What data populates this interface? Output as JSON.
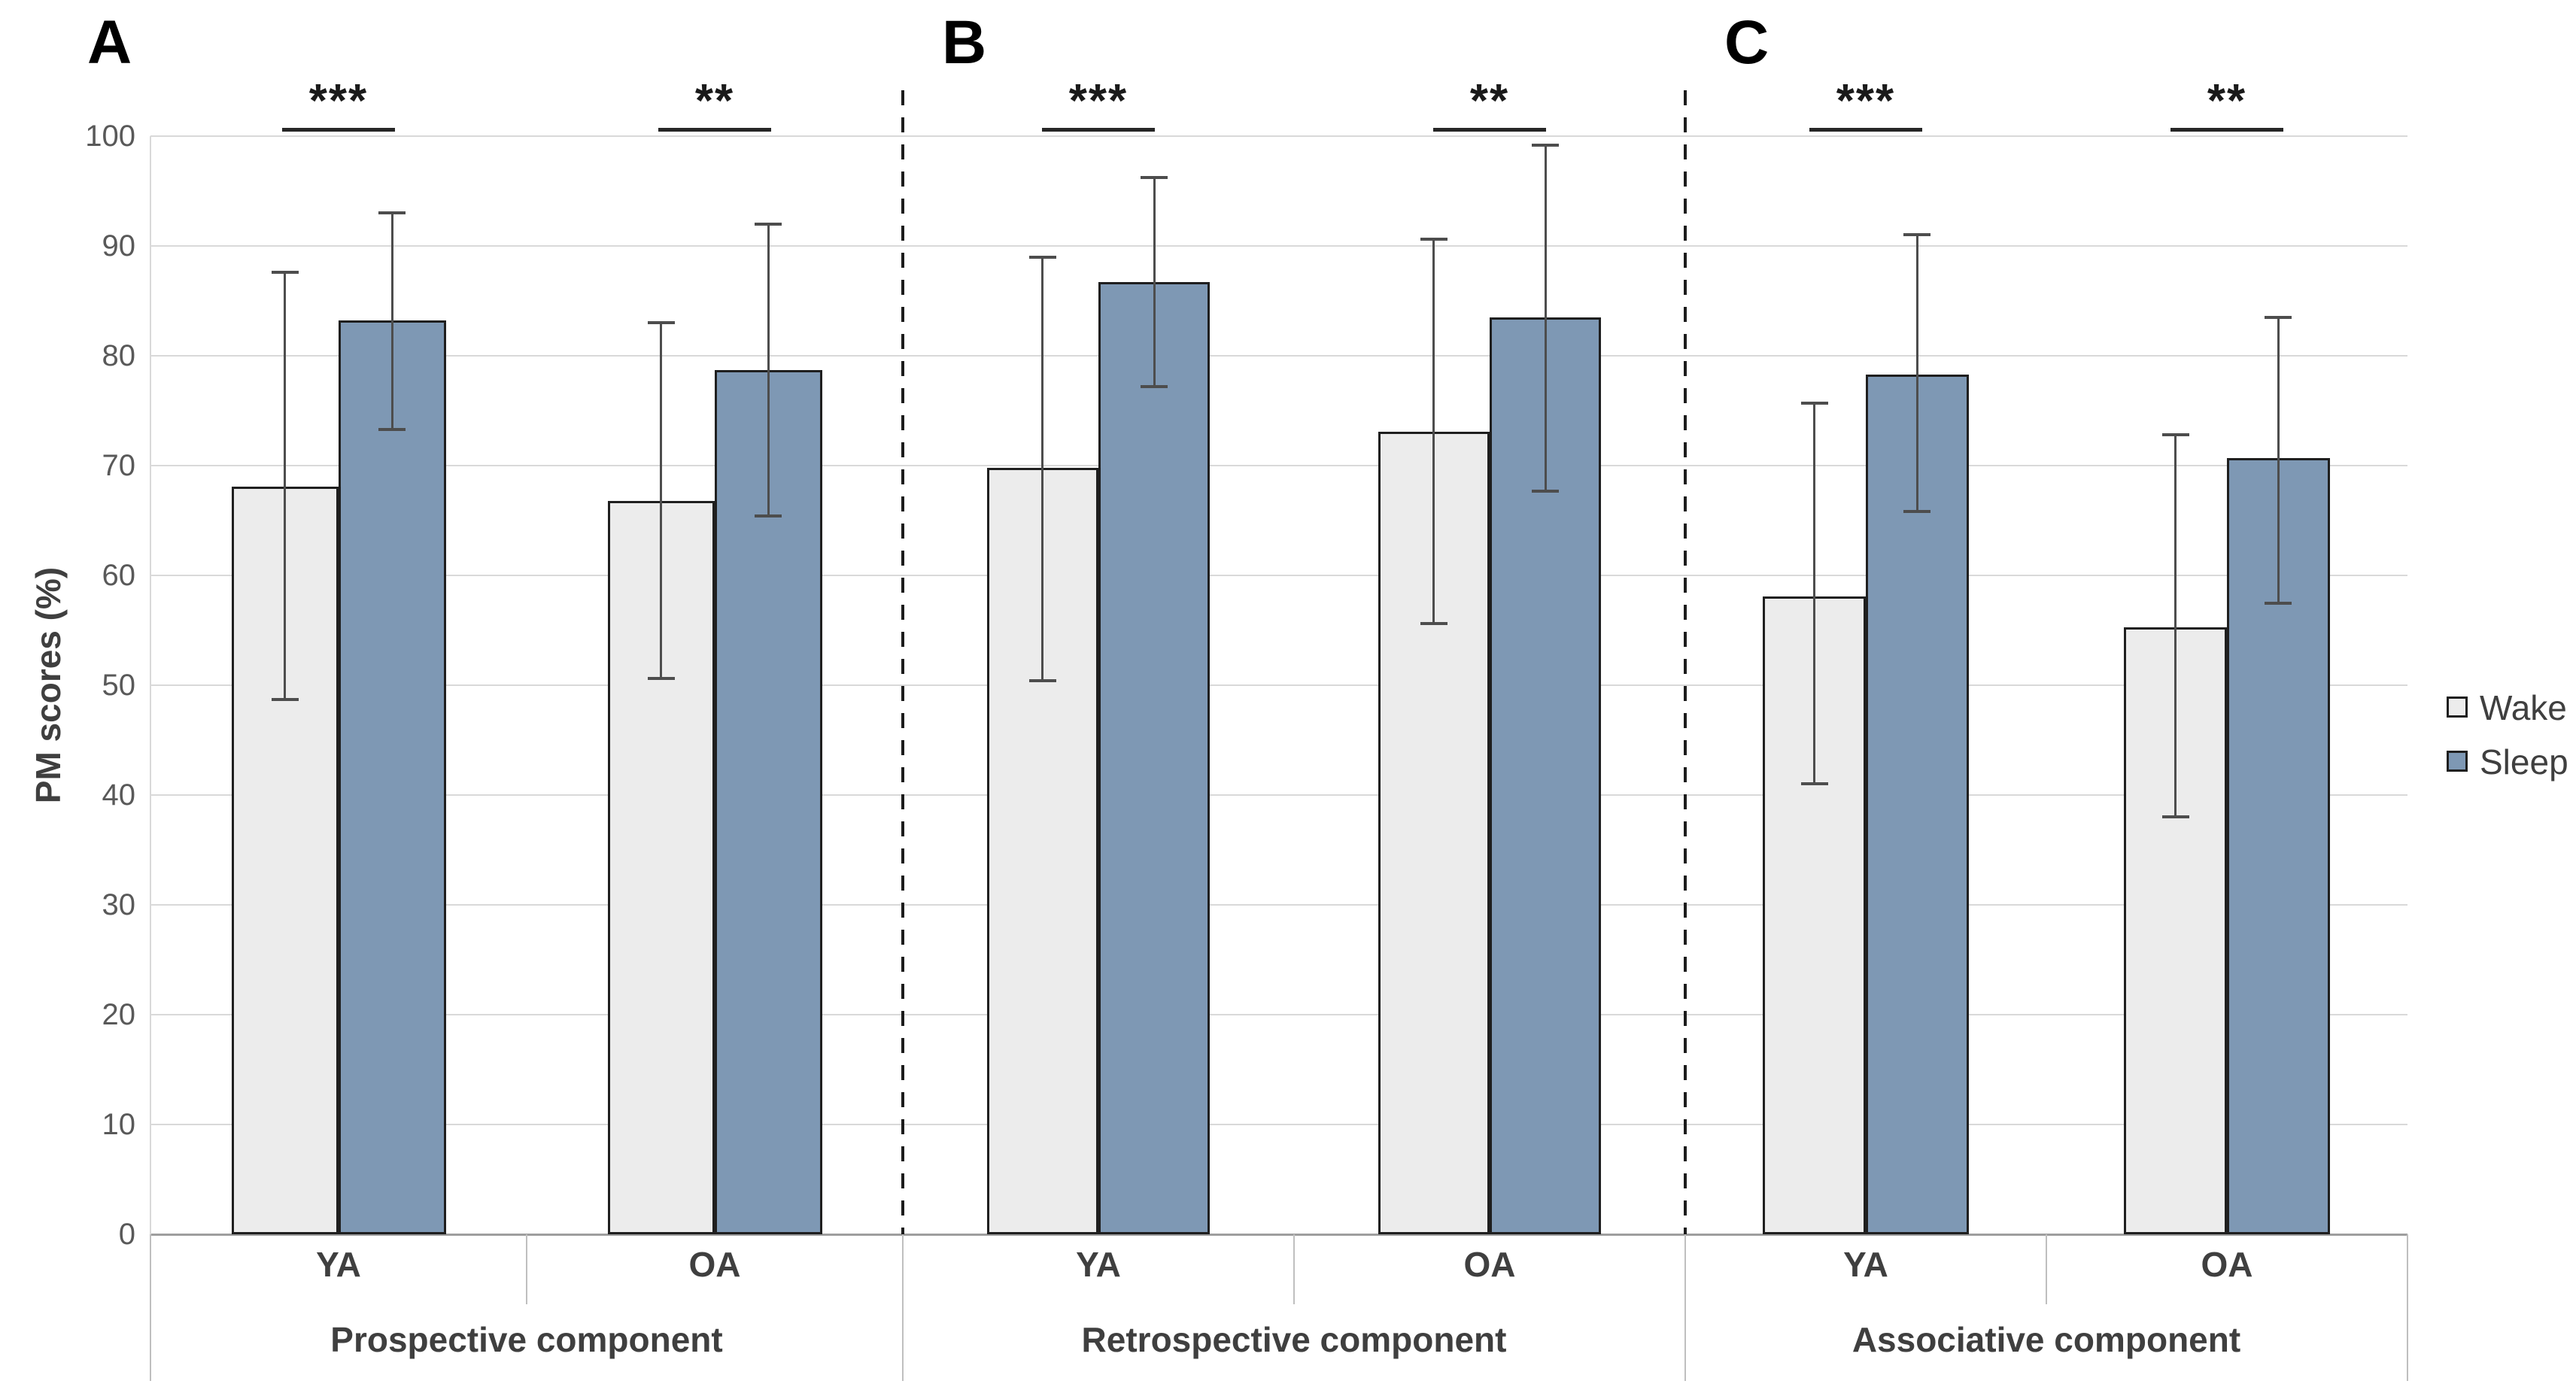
{
  "figure": {
    "background": "#ffffff",
    "description_visible_text_only": true
  },
  "y_axis": {
    "title": "PM scores (%)",
    "tick_labels": [
      "0",
      "10",
      "20",
      "30",
      "40",
      "50",
      "60",
      "70",
      "80",
      "90",
      "100"
    ]
  },
  "legend": {
    "items": [
      {
        "label": "Wake",
        "color": "#ececec"
      },
      {
        "label": "Sleep",
        "color": "#7e98b4"
      }
    ]
  },
  "chart_data": {
    "type": "bar",
    "title": "",
    "xlabel": "",
    "ylabel": "PM scores (%)",
    "ylim": [
      0,
      100
    ],
    "ytick_step": 10,
    "grid": true,
    "legend_position": "right",
    "series_names": [
      "Wake",
      "Sleep"
    ],
    "colors": {
      "wake_fill": "#ececec",
      "sleep_fill": "#7e98b4",
      "bar_border": "#1f1f1f",
      "error_bar": "#4d4d4d",
      "gridline": "#d9d9d9",
      "axis_baseline": "#9e9e9e",
      "axis_tick": "#bfbfbf",
      "tick_text": "#595959",
      "label_text": "#3f3f3f",
      "significance_text": "#1a1a1a",
      "panel_separator": "#1c1c1c"
    },
    "panels": [
      {
        "letter": "A",
        "caption": "Prospective component",
        "categories": [
          "YA",
          "OA"
        ],
        "significance": [
          "***",
          "**"
        ],
        "series": [
          {
            "name": "Wake",
            "values": [
              68.1,
              66.8
            ],
            "err_low": [
              48.7,
              50.6
            ],
            "err_high": [
              87.6,
              83.0
            ]
          },
          {
            "name": "Sleep",
            "values": [
              83.2,
              78.7
            ],
            "err_low": [
              73.3,
              65.4
            ],
            "err_high": [
              93.0,
              92.0
            ]
          }
        ]
      },
      {
        "letter": "B",
        "caption": "Retrospective component",
        "categories": [
          "YA",
          "OA"
        ],
        "significance": [
          "***",
          "**"
        ],
        "series": [
          {
            "name": "Wake",
            "values": [
              69.8,
              73.1
            ],
            "err_low": [
              50.4,
              55.6
            ],
            "err_high": [
              89.0,
              90.6
            ]
          },
          {
            "name": "Sleep",
            "values": [
              86.7,
              83.5
            ],
            "err_low": [
              77.2,
              67.7
            ],
            "err_high": [
              96.2,
              99.2
            ]
          }
        ]
      },
      {
        "letter": "C",
        "caption": "Associative component",
        "categories": [
          "YA",
          "OA"
        ],
        "significance": [
          "***",
          "**"
        ],
        "series": [
          {
            "name": "Wake",
            "values": [
              58.1,
              55.3
            ],
            "err_low": [
              41.0,
              38.0
            ],
            "err_high": [
              75.7,
              72.8
            ]
          },
          {
            "name": "Sleep",
            "values": [
              78.3,
              70.7
            ],
            "err_low": [
              65.8,
              57.5
            ],
            "err_high": [
              91.0,
              83.5
            ]
          }
        ]
      }
    ]
  }
}
